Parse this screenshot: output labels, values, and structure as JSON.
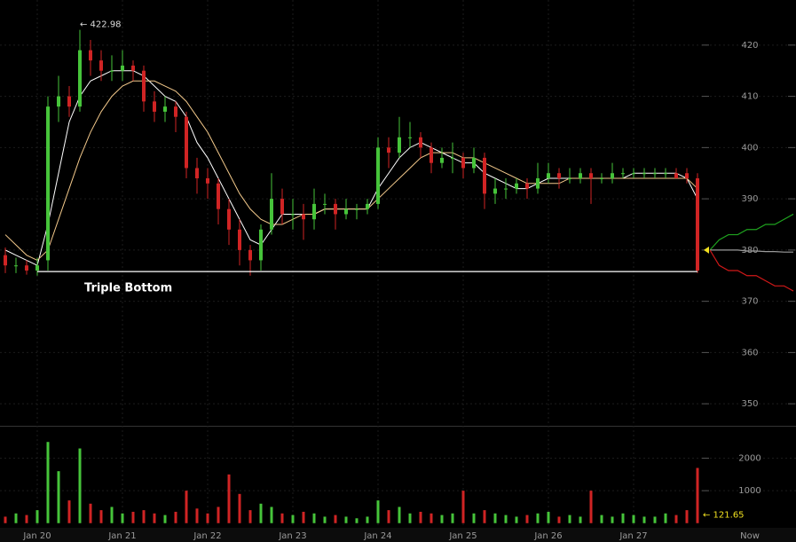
{
  "chart_data": {
    "type": "candlestick",
    "categories": [
      null,
      null,
      null,
      "Jan 20",
      null,
      null,
      null,
      null,
      null,
      null,
      null,
      "Jan 21",
      null,
      null,
      null,
      null,
      null,
      null,
      null,
      "Jan 22",
      null,
      null,
      null,
      null,
      null,
      null,
      null,
      "Jan 23",
      null,
      null,
      null,
      null,
      null,
      null,
      null,
      "Jan 24",
      null,
      null,
      null,
      null,
      null,
      null,
      null,
      "Jan 25",
      null,
      null,
      null,
      null,
      null,
      null,
      null,
      "Jan 26",
      null,
      null,
      null,
      null,
      null,
      null,
      null,
      "Jan 27",
      null,
      null,
      null,
      null,
      null,
      null
    ],
    "open": [
      379,
      377,
      377,
      376,
      378,
      408,
      410,
      408,
      419,
      417,
      415,
      415,
      416,
      415,
      409,
      407,
      408,
      406,
      396,
      394,
      393,
      388,
      384,
      380,
      378,
      384,
      390,
      387,
      387,
      386,
      389,
      389,
      387,
      388,
      388,
      389,
      400,
      399,
      402,
      402,
      400,
      397,
      398,
      398,
      396,
      398,
      391,
      392,
      392,
      393,
      392,
      394,
      395,
      394,
      394,
      395,
      394,
      394,
      395,
      395,
      395,
      395,
      395,
      395,
      395,
      394
    ],
    "high": [
      380.5,
      378.5,
      378,
      378.5,
      410,
      414,
      412,
      422.98,
      421,
      419,
      418,
      419,
      417,
      416,
      411,
      410,
      409,
      407,
      398,
      396,
      394,
      390,
      386,
      381,
      385,
      395,
      392,
      390,
      389,
      392,
      391,
      390,
      390,
      389,
      390,
      402,
      402,
      406,
      405,
      403,
      401,
      400,
      401,
      399,
      400,
      399,
      394,
      394,
      394,
      394,
      397,
      397,
      396,
      396,
      396,
      396,
      395,
      397,
      396,
      396,
      396,
      396,
      396,
      396,
      396,
      395
    ],
    "low": [
      375.5,
      375.5,
      375.2,
      375,
      376,
      405,
      406,
      407,
      414,
      413,
      413,
      413,
      413,
      407,
      405,
      405,
      403,
      394,
      391,
      390,
      385,
      381,
      377,
      375,
      376,
      383,
      385,
      384,
      382,
      384,
      387,
      384,
      386,
      386,
      387,
      388,
      396,
      398,
      400,
      398,
      395,
      396,
      395,
      394,
      395,
      388,
      389,
      390,
      391,
      390,
      391,
      393,
      392,
      393,
      393,
      389,
      393,
      393,
      394,
      394,
      394,
      394,
      394,
      394,
      393,
      375.5
    ],
    "close": [
      377,
      377,
      376,
      377,
      408,
      410,
      408,
      419,
      417,
      415,
      415,
      416,
      415,
      409,
      407,
      408,
      406,
      396,
      394,
      393,
      388,
      384,
      380,
      378,
      384,
      390,
      387,
      387,
      386,
      389,
      389,
      387,
      388,
      388,
      389,
      400,
      399,
      402,
      402,
      400,
      397,
      398,
      398,
      396,
      398,
      391,
      392,
      392,
      393,
      392,
      394,
      395,
      394,
      394,
      395,
      394,
      394,
      395,
      395,
      395,
      395,
      395,
      395,
      394,
      394,
      376
    ],
    "volume": [
      200,
      300,
      250,
      400,
      2500,
      1600,
      700,
      2300,
      600,
      400,
      500,
      300,
      350,
      400,
      300,
      250,
      350,
      1000,
      450,
      300,
      500,
      1500,
      900,
      400,
      600,
      500,
      300,
      250,
      350,
      300,
      200,
      250,
      200,
      150,
      200,
      700,
      400,
      500,
      300,
      350,
      300,
      250,
      300,
      1000,
      300,
      400,
      300,
      250,
      200,
      250,
      300,
      350,
      200,
      250,
      200,
      1000,
      250,
      200,
      300,
      250,
      200,
      200,
      300,
      250,
      400,
      1700
    ],
    "up_color": "#46c43a",
    "down_color": "#d02424",
    "ylim": [
      345.7,
      428.8
    ],
    "yticks": [
      350,
      360,
      370,
      380,
      390,
      400,
      410,
      420
    ],
    "volume_ylim": [
      -143,
      2943
    ],
    "volume_yticks": [
      1000,
      2000
    ],
    "grid": true,
    "moving_averages": [
      {
        "color": "#ffffff",
        "values": [
          380,
          379,
          378,
          377,
          385,
          395,
          405,
          410,
          413,
          414,
          415,
          415,
          415,
          414,
          412,
          410,
          409,
          406,
          401,
          398,
          394,
          390,
          386,
          382,
          381,
          384,
          387,
          387,
          387,
          387,
          388,
          388,
          388,
          388,
          388,
          392,
          395,
          398,
          400,
          401,
          400,
          399,
          398,
          397,
          397,
          395,
          394,
          393,
          392,
          392,
          393,
          394,
          394,
          394,
          394,
          394,
          394,
          394,
          394,
          395,
          395,
          395,
          395,
          395,
          394,
          390
        ]
      },
      {
        "color": "#f3c98b",
        "values": [
          383,
          381,
          379,
          378,
          380,
          386,
          392,
          398,
          403,
          407,
          410,
          412,
          413,
          413,
          413,
          412,
          411,
          409,
          406,
          403,
          399,
          395,
          391,
          388,
          386,
          385,
          385,
          386,
          387,
          387,
          388,
          388,
          388,
          388,
          388,
          390,
          392,
          394,
          396,
          398,
          399,
          399,
          399,
          398,
          398,
          397,
          396,
          395,
          394,
          393,
          393,
          393,
          393,
          394,
          394,
          394,
          394,
          394,
          394,
          394,
          394,
          394,
          394,
          394,
          394,
          392
        ]
      }
    ],
    "forecast": [
      {
        "color": "#1fa31f",
        "values": [
          380,
          382,
          383,
          383,
          384,
          384,
          385,
          385,
          386,
          387
        ]
      },
      {
        "color": "#9a9a9a",
        "values": [
          380,
          380,
          380,
          380,
          379.8,
          379.8,
          379.7,
          379.7,
          379.6,
          379.6
        ]
      },
      {
        "color": "#d01818",
        "values": [
          380,
          377,
          376,
          376,
          375,
          375,
          374,
          373,
          373,
          372
        ]
      }
    ],
    "annotations": {
      "high": {
        "label": "← 422.98",
        "value": 422.98
      },
      "support": {
        "label": "Triple Bottom",
        "value": 375.8
      },
      "volume": {
        "label": "← 121.65",
        "value": 121.65
      }
    },
    "now_label": "Now"
  }
}
